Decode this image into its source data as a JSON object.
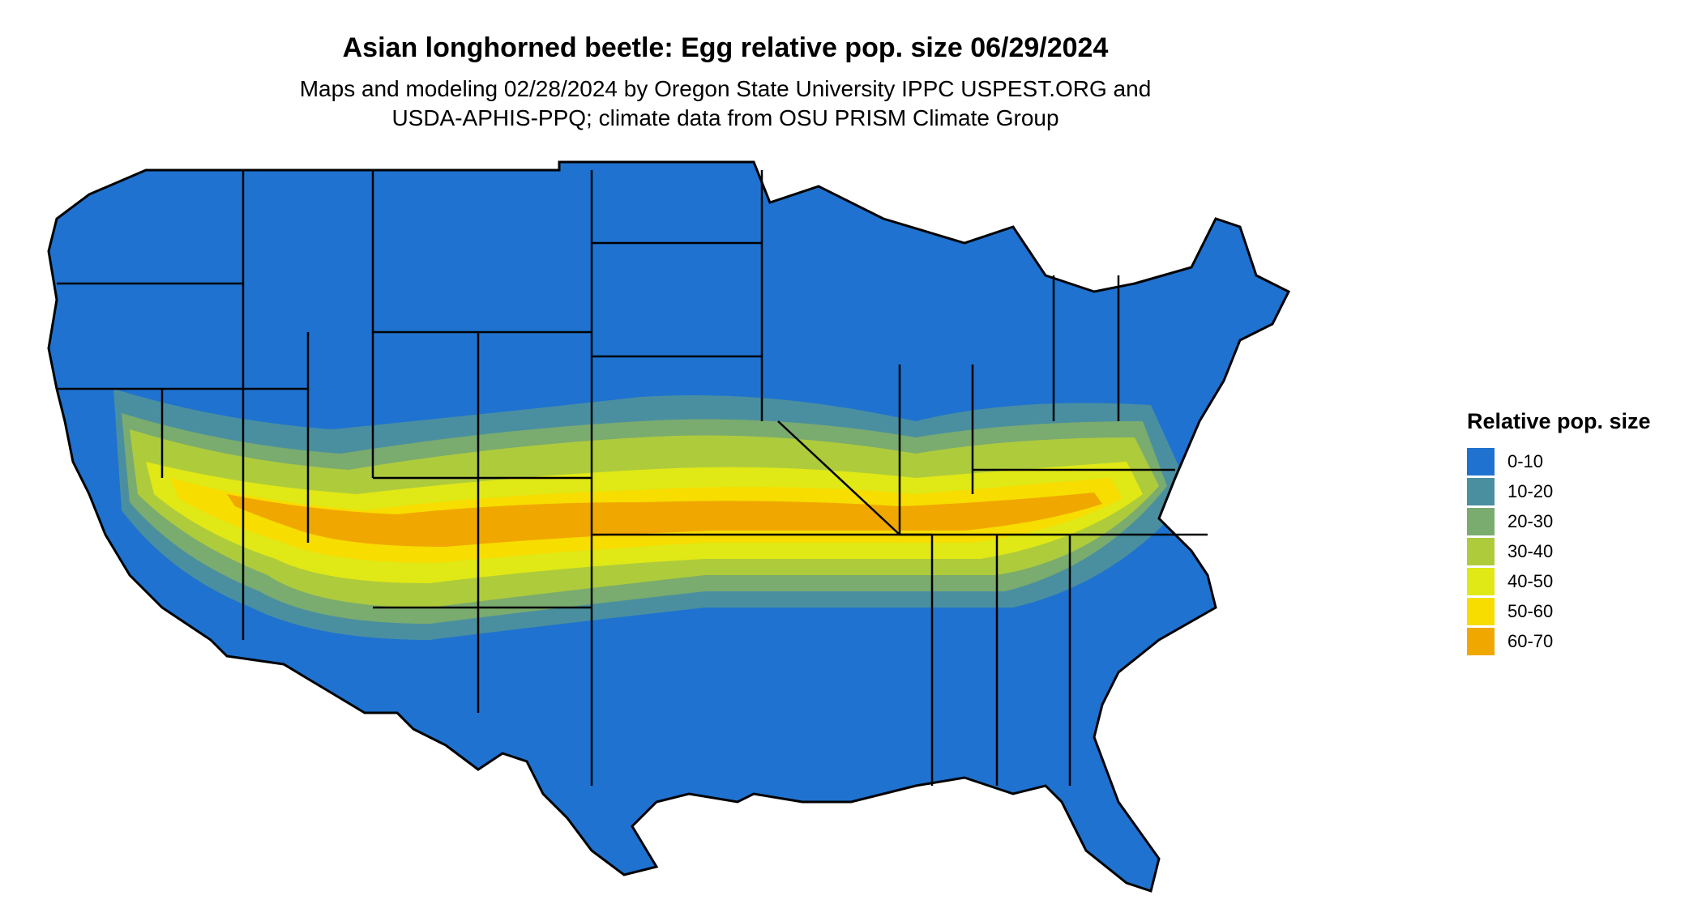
{
  "title": "Asian longhorned beetle: Egg relative pop. size 06/29/2024",
  "subtitle_line1": "Maps and modeling 02/28/2024 by Oregon State University IPPC USPEST.ORG and",
  "subtitle_line2": "USDA-APHIS-PPQ; climate data from OSU PRISM Climate Group",
  "legend": {
    "title": "Relative pop. size",
    "items": [
      {
        "label": "0-10",
        "color": "#1f72cf"
      },
      {
        "label": "10-20",
        "color": "#4a8fa0"
      },
      {
        "label": "20-30",
        "color": "#7aab6f"
      },
      {
        "label": "30-40",
        "color": "#aecb3c"
      },
      {
        "label": "40-50",
        "color": "#e0e816"
      },
      {
        "label": "50-60",
        "color": "#f7dd00"
      },
      {
        "label": "60-70",
        "color": "#f0a800"
      }
    ]
  }
}
